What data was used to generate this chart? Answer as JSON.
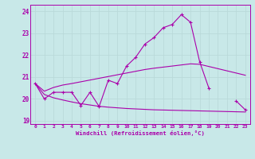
{
  "background_color": "#c8e8e8",
  "line_color": "#aa00aa",
  "grid_color": "#b8d8d8",
  "xlabel": "Windchill (Refroidissement éolien,°C)",
  "x_hours": [
    0,
    1,
    2,
    3,
    4,
    5,
    6,
    7,
    8,
    9,
    10,
    11,
    12,
    13,
    14,
    15,
    16,
    17,
    18,
    19,
    20,
    21,
    22,
    23
  ],
  "line1_y": [
    20.7,
    20.0,
    20.3,
    20.3,
    20.3,
    19.7,
    20.3,
    19.65,
    20.85,
    20.7,
    21.5,
    21.9,
    22.5,
    22.8,
    23.25,
    23.4,
    23.85,
    23.5,
    21.7,
    20.5,
    null,
    null,
    19.9,
    19.5
  ],
  "line2_y": [
    20.7,
    20.35,
    20.52,
    20.63,
    20.7,
    20.78,
    20.86,
    20.94,
    21.02,
    21.1,
    21.18,
    21.26,
    21.34,
    21.4,
    21.45,
    21.5,
    21.55,
    21.6,
    21.58,
    21.48,
    21.38,
    21.28,
    21.18,
    21.08
  ],
  "line3_y": [
    20.7,
    20.2,
    20.05,
    19.95,
    19.86,
    19.78,
    19.72,
    19.66,
    19.62,
    19.59,
    19.56,
    19.54,
    19.52,
    19.5,
    19.49,
    19.48,
    19.47,
    19.46,
    19.45,
    19.44,
    19.43,
    19.42,
    19.41,
    19.4
  ],
  "ylim": [
    18.85,
    24.3
  ],
  "yticks": [
    19,
    20,
    21,
    22,
    23,
    24
  ],
  "xtick_labels": [
    "0",
    "1",
    "2",
    "3",
    "4",
    "5",
    "6",
    "7",
    "8",
    "9",
    "10",
    "11",
    "12",
    "13",
    "14",
    "15",
    "16",
    "17",
    "18",
    "19",
    "20",
    "21",
    "22",
    "23"
  ]
}
